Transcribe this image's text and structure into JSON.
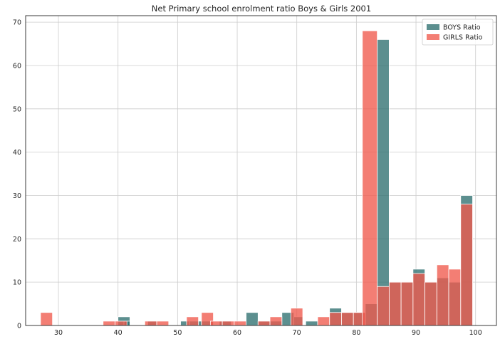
{
  "chart_data": {
    "type": "bar",
    "title": "Net Primary school enrolment ratio Boys & Girls 2001",
    "xlabel": "",
    "ylabel": "",
    "xlim": [
      24.5,
      103.5
    ],
    "ylim": [
      0,
      71.5
    ],
    "xticks": [
      30,
      40,
      50,
      60,
      70,
      80,
      90,
      100
    ],
    "yticks": [
      0,
      10,
      20,
      30,
      40,
      50,
      60,
      70
    ],
    "grid": true,
    "legend": "top-right",
    "series": [
      {
        "name": "BOYS Ratio",
        "color": "#2e6f6f",
        "bars": [
          [
            40,
            42,
            2
          ],
          [
            41,
            42,
            1
          ],
          [
            45,
            46.5,
            1
          ],
          [
            50.5,
            52,
            1
          ],
          [
            52,
            54,
            1
          ],
          [
            54,
            56,
            1
          ],
          [
            57,
            59,
            1
          ],
          [
            61.5,
            63.5,
            3
          ],
          [
            63.5,
            65.5,
            1
          ],
          [
            65.5,
            67.5,
            1
          ],
          [
            67.5,
            69.5,
            3
          ],
          [
            69.5,
            71,
            2
          ],
          [
            71.5,
            73.5,
            1
          ],
          [
            75.5,
            77.5,
            4
          ],
          [
            77.5,
            79.5,
            3
          ],
          [
            79.5,
            81.5,
            3
          ],
          [
            81.5,
            83.5,
            5
          ],
          [
            83.5,
            85.5,
            66
          ],
          [
            85.5,
            87.5,
            10
          ],
          [
            87.5,
            89.5,
            10
          ],
          [
            89.5,
            91.5,
            13
          ],
          [
            91.5,
            93.5,
            10
          ],
          [
            93.5,
            95.5,
            11
          ],
          [
            95.5,
            97.5,
            10
          ],
          [
            97.5,
            99.5,
            30
          ]
        ]
      },
      {
        "name": "GIRLS Ratio",
        "color": "#ef5a4d",
        "bars": [
          [
            27,
            29,
            3
          ],
          [
            37.5,
            39.5,
            1
          ],
          [
            39.5,
            41.5,
            1
          ],
          [
            44.5,
            46.5,
            1
          ],
          [
            46.5,
            48.5,
            1
          ],
          [
            51.5,
            53.5,
            2
          ],
          [
            54,
            56,
            3
          ],
          [
            55.5,
            57.5,
            1
          ],
          [
            57.5,
            59.5,
            1
          ],
          [
            59.5,
            61.5,
            1
          ],
          [
            63.5,
            65.5,
            1
          ],
          [
            65.5,
            67.5,
            2
          ],
          [
            69,
            71,
            4
          ],
          [
            73.5,
            75.5,
            2
          ],
          [
            75.5,
            77.5,
            3
          ],
          [
            77.5,
            79.5,
            3
          ],
          [
            79.5,
            81.5,
            3
          ],
          [
            81,
            83.5,
            68
          ],
          [
            83.5,
            85.5,
            9
          ],
          [
            85.5,
            87.5,
            10
          ],
          [
            87.5,
            89.5,
            10
          ],
          [
            89.5,
            91.5,
            12
          ],
          [
            91.5,
            93.5,
            10
          ],
          [
            93.5,
            95.5,
            14
          ],
          [
            95.5,
            97.5,
            13
          ],
          [
            97.5,
            99.5,
            28
          ]
        ]
      }
    ]
  }
}
